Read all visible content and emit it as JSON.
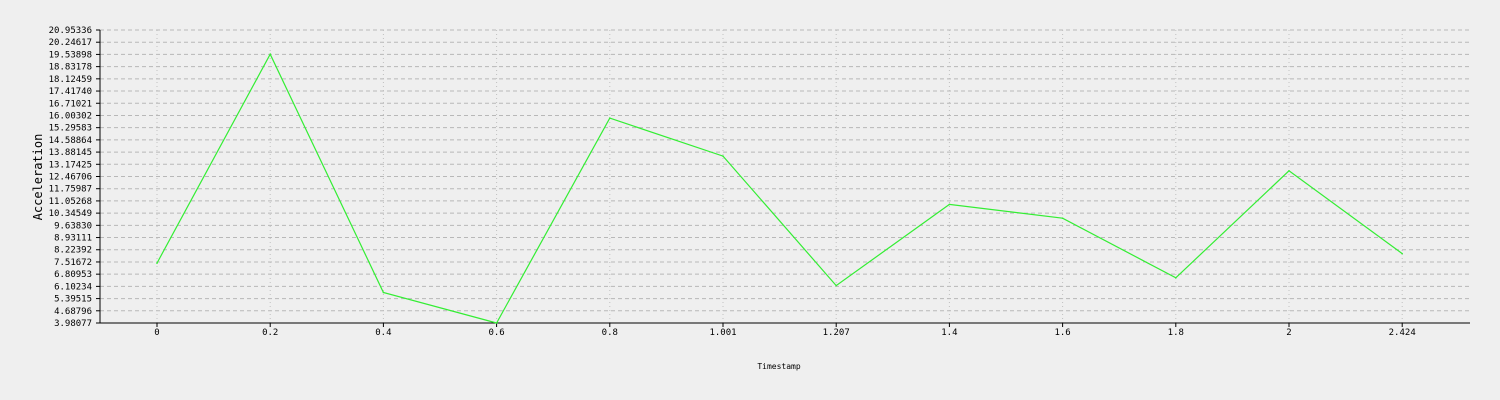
{
  "chart_data": {
    "type": "line",
    "xlabel": "Timestamp",
    "ylabel": "Acceleration",
    "x": [
      "0",
      "0.2",
      "0.4",
      "0.6",
      "0.8",
      "1.001",
      "1.207",
      "1.4",
      "1.6",
      "1.8",
      "2",
      "2.424"
    ],
    "series": [
      {
        "color": "#33ee33",
        "values": [
          7.45,
          19.55,
          5.75,
          3.98077,
          15.85,
          13.65,
          6.15,
          10.85,
          10.05,
          6.6,
          12.8,
          8.0
        ]
      }
    ],
    "ylim": [
      3.98077,
      20.95336
    ],
    "y_ticks": [
      "3.98077",
      "4.68796",
      "5.39515",
      "6.10234",
      "6.80953",
      "7.51672",
      "8.22392",
      "8.93111",
      "9.63830",
      "10.34549",
      "11.05268",
      "11.75987",
      "12.46706",
      "13.17425",
      "13.88145",
      "14.58864",
      "15.29583",
      "16.00302",
      "16.71021",
      "17.41740",
      "18.12459",
      "18.83178",
      "19.53898",
      "20.24617",
      "20.95336"
    ],
    "grid": true,
    "legend": "none"
  }
}
